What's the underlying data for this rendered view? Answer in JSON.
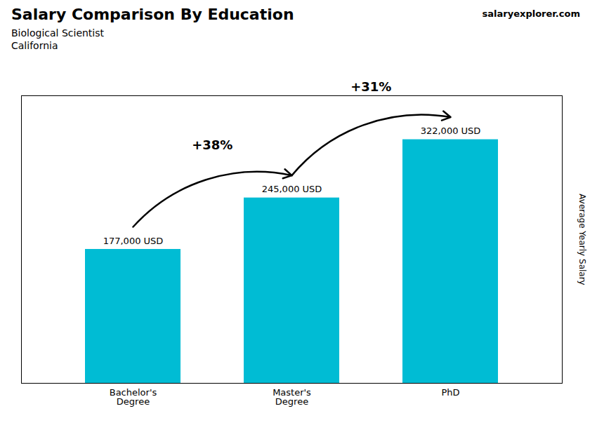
{
  "chart_data": {
    "type": "bar",
    "title": "Salary Comparison By Education",
    "subtitle": [
      "Biological Scientist",
      "California"
    ],
    "caption": "salaryexplorer.com",
    "ylabel": "Average Yearly Salary",
    "categories": [
      "Bachelor's\nDegree",
      "Master's\nDegree",
      "PhD"
    ],
    "values": [
      177000,
      245000,
      322000
    ],
    "value_labels": [
      "177,000 USD",
      "245,000 USD",
      "322,000 USD"
    ],
    "data_labels": true,
    "color": "#00bcd4",
    "ylim": [
      0,
      380000
    ],
    "yticks": [],
    "tick_labels": "x",
    "grid": false,
    "annotations": [
      "+38%",
      "+31%"
    ]
  }
}
